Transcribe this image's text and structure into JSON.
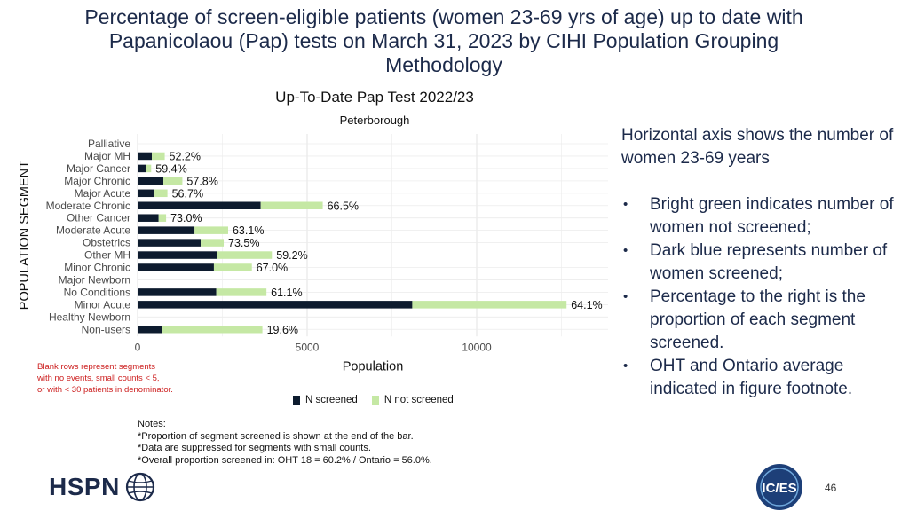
{
  "slide": {
    "title_lines": [
      "Percentage of screen-eligible patients (women 23-69 yrs of age) up to date with",
      "Papanicolaou (Pap) tests on March 31, 2023 by CIHI Population Grouping",
      "Methodology"
    ],
    "page_number": "46",
    "logo_left": "HSPN",
    "logo_right": "IC/ES"
  },
  "chart_data": {
    "type": "bar",
    "orientation": "horizontal",
    "stacked": true,
    "title": "Up-To-Date Pap Test 2022/23",
    "subtitle": "Peterborough",
    "xlabel": "Population",
    "ylabel": "POPULATION SEGMENT",
    "xlim": [
      0,
      13500
    ],
    "xticks": [
      0,
      5000,
      10000
    ],
    "grid": true,
    "legend_position": "bottom",
    "categories": [
      "Palliative",
      "Major MH",
      "Major Cancer",
      "Major Chronic",
      "Major Acute",
      "Moderate Chronic",
      "Other Cancer",
      "Moderate Acute",
      "Obstetrics",
      "Other MH",
      "Minor Chronic",
      "Major Newborn",
      "No Conditions",
      "Minor Acute",
      "Healthy Newborn",
      "Non-users"
    ],
    "series": [
      {
        "name": "N screened",
        "color": "#0d1b2e",
        "values": [
          null,
          420,
          240,
          760,
          500,
          3630,
          620,
          1680,
          1860,
          2340,
          2250,
          null,
          2320,
          8100,
          null,
          720
        ]
      },
      {
        "name": "N not screened",
        "color": "#c5e8a4",
        "values": [
          null,
          380,
          160,
          560,
          380,
          1830,
          220,
          990,
          680,
          1620,
          1120,
          null,
          1480,
          4550,
          null,
          2960
        ]
      }
    ],
    "data_labels": [
      "",
      "52.2%",
      "59.4%",
      "57.8%",
      "56.7%",
      "66.5%",
      "73.0%",
      "63.1%",
      "73.5%",
      "59.2%",
      "67.0%",
      "",
      "61.1%",
      "64.1%",
      "",
      "19.6%"
    ]
  },
  "blank_note_lines": [
    "Blank rows represent segments",
    "with no events, small counts < 5,",
    "or with < 30 patients in denominator."
  ],
  "notes_lines": [
    "Notes:",
    "*Proportion of segment screened is shown at the end of the bar.",
    "*Data are suppressed for segments with small counts.",
    "*Overall proportion screened in: OHT 18 = 60.2% / Ontario = 56.0%."
  ],
  "side_panel": {
    "intro": "Horizontal axis shows the number of  women 23-69 years",
    "bullet_glyph": "•",
    "bullets": [
      "Bright green indicates number of women not screened;",
      "Dark blue represents number of women screened;",
      "Percentage to the right is the proportion of each segment screened.",
      "OHT and Ontario average indicated in figure footnote."
    ]
  }
}
